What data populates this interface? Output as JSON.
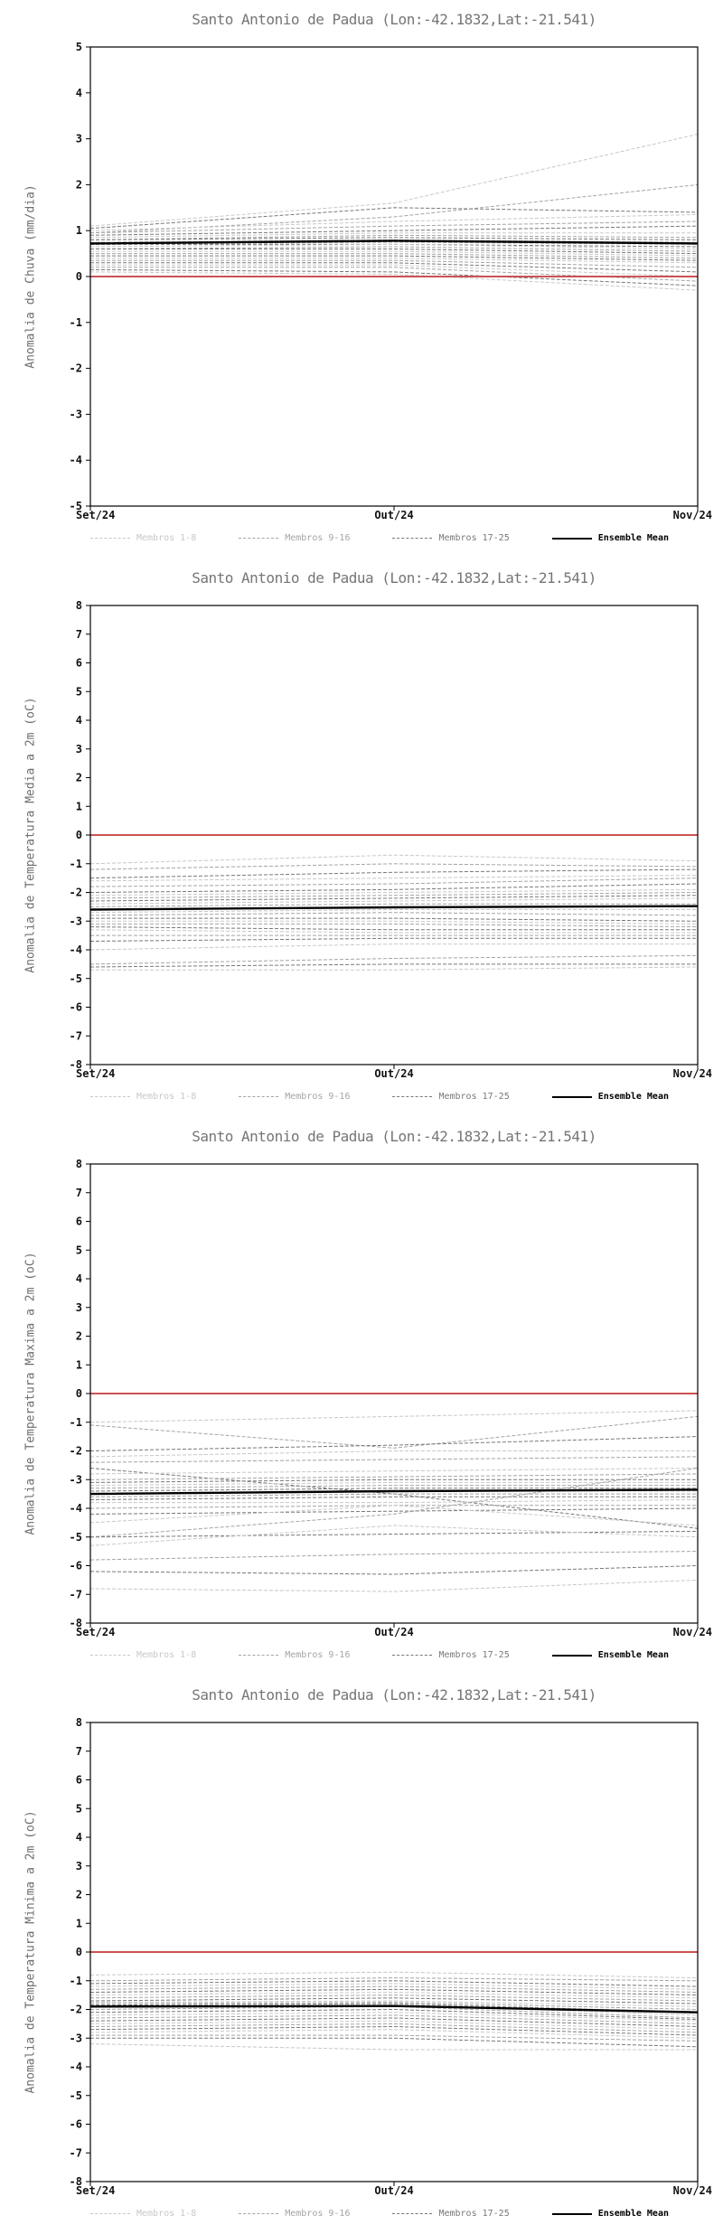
{
  "accent_colors": {
    "zero_line_red": "#cc5252",
    "ensemble_mean_black": "#000000",
    "members_light": "#c8c8c8",
    "members_mid": "#a4a4a4",
    "members_dark": "#787878"
  },
  "chart_data": [
    {
      "type": "line",
      "title": "Santo Antonio de Padua (Lon:-42.1832,Lat:-21.541)",
      "ylabel": "Anomalia de Chuva (mm/dia)",
      "x_ticks": [
        "Set/24",
        "Out/24",
        "Nov/24"
      ],
      "ylim": [
        -5,
        5
      ],
      "ytick_step": 1,
      "grid": false,
      "legend_position": "bottom",
      "zero_line": {
        "value": 0,
        "color": "#cc5252"
      },
      "legend": [
        {
          "label": "Membros 1-8",
          "color": "#c8c8c8",
          "dashed": true
        },
        {
          "label": "Membros 9-16",
          "color": "#a4a4a4",
          "dashed": true
        },
        {
          "label": "Membros 17-25",
          "color": "#787878",
          "dashed": true
        },
        {
          "label": "Ensemble Mean",
          "color": "#000000",
          "dashed": false
        }
      ],
      "members": [
        {
          "group": 0,
          "values": [
            1.1,
            1.6,
            3.1
          ]
        },
        {
          "group": 1,
          "values": [
            0.95,
            1.3,
            2.0
          ]
        },
        {
          "group": 2,
          "values": [
            1.05,
            1.5,
            1.4
          ]
        },
        {
          "group": 0,
          "values": [
            1.0,
            1.2,
            1.35
          ]
        },
        {
          "group": 1,
          "values": [
            0.95,
            1.1,
            1.2
          ]
        },
        {
          "group": 2,
          "values": [
            0.9,
            1.0,
            1.1
          ]
        },
        {
          "group": 0,
          "values": [
            0.85,
            0.95,
            0.95
          ]
        },
        {
          "group": 1,
          "values": [
            0.8,
            0.9,
            0.85
          ]
        },
        {
          "group": 2,
          "values": [
            0.8,
            0.85,
            0.8
          ]
        },
        {
          "group": 0,
          "values": [
            0.75,
            0.8,
            0.75
          ]
        },
        {
          "group": 1,
          "values": [
            0.7,
            0.75,
            0.7
          ]
        },
        {
          "group": 2,
          "values": [
            0.7,
            0.7,
            0.65
          ]
        },
        {
          "group": 0,
          "values": [
            0.65,
            0.7,
            0.6
          ]
        },
        {
          "group": 1,
          "values": [
            0.6,
            0.65,
            0.55
          ]
        },
        {
          "group": 2,
          "values": [
            0.6,
            0.6,
            0.5
          ]
        },
        {
          "group": 0,
          "values": [
            0.55,
            0.55,
            0.45
          ]
        },
        {
          "group": 1,
          "values": [
            0.5,
            0.5,
            0.4
          ]
        },
        {
          "group": 2,
          "values": [
            0.45,
            0.45,
            0.35
          ]
        },
        {
          "group": 0,
          "values": [
            0.4,
            0.4,
            0.3
          ]
        },
        {
          "group": 1,
          "values": [
            0.35,
            0.35,
            0.2
          ]
        },
        {
          "group": 2,
          "values": [
            0.3,
            0.3,
            0.1
          ]
        },
        {
          "group": 0,
          "values": [
            0.25,
            0.25,
            0.0
          ]
        },
        {
          "group": 1,
          "values": [
            0.2,
            0.2,
            -0.1
          ]
        },
        {
          "group": 2,
          "values": [
            0.15,
            0.1,
            -0.2
          ]
        },
        {
          "group": 0,
          "values": [
            0.1,
            0.05,
            -0.3
          ]
        }
      ],
      "ensemble_mean": [
        0.72,
        0.78,
        0.72
      ]
    },
    {
      "type": "line",
      "title": "Santo Antonio de Padua (Lon:-42.1832,Lat:-21.541)",
      "ylabel": "Anomalia de Temperatura Media a 2m (oC)",
      "x_ticks": [
        "Set/24",
        "Out/24",
        "Nov/24"
      ],
      "ylim": [
        -8,
        8
      ],
      "ytick_step": 1,
      "grid": false,
      "legend_position": "bottom",
      "zero_line": {
        "value": 0,
        "color": "#cc5252"
      },
      "legend": [
        {
          "label": "Membros 1-8",
          "color": "#c8c8c8",
          "dashed": true
        },
        {
          "label": "Membros 9-16",
          "color": "#a4a4a4",
          "dashed": true
        },
        {
          "label": "Membros 17-25",
          "color": "#787878",
          "dashed": true
        },
        {
          "label": "Ensemble Mean",
          "color": "#000000",
          "dashed": false
        }
      ],
      "members": [
        {
          "group": 0,
          "values": [
            -1.0,
            -0.7,
            -0.9
          ]
        },
        {
          "group": 1,
          "values": [
            -1.2,
            -1.0,
            -1.1
          ]
        },
        {
          "group": 2,
          "values": [
            -1.5,
            -1.3,
            -1.2
          ]
        },
        {
          "group": 0,
          "values": [
            -1.6,
            -1.5,
            -1.4
          ]
        },
        {
          "group": 1,
          "values": [
            -1.8,
            -1.7,
            -1.5
          ]
        },
        {
          "group": 2,
          "values": [
            -2.0,
            -1.9,
            -1.7
          ]
        },
        {
          "group": 0,
          "values": [
            -2.1,
            -2.0,
            -1.9
          ]
        },
        {
          "group": 1,
          "values": [
            -2.2,
            -2.1,
            -2.0
          ]
        },
        {
          "group": 2,
          "values": [
            -2.3,
            -2.2,
            -2.1
          ]
        },
        {
          "group": 0,
          "values": [
            -2.4,
            -2.3,
            -2.2
          ]
        },
        {
          "group": 1,
          "values": [
            -2.5,
            -2.4,
            -2.4
          ]
        },
        {
          "group": 2,
          "values": [
            -2.6,
            -2.5,
            -2.5
          ]
        },
        {
          "group": 0,
          "values": [
            -2.7,
            -2.6,
            -2.6
          ]
        },
        {
          "group": 1,
          "values": [
            -2.8,
            -2.7,
            -2.8
          ]
        },
        {
          "group": 2,
          "values": [
            -2.9,
            -2.9,
            -3.0
          ]
        },
        {
          "group": 0,
          "values": [
            -3.0,
            -3.0,
            -3.1
          ]
        },
        {
          "group": 1,
          "values": [
            -3.1,
            -3.1,
            -3.2
          ]
        },
        {
          "group": 2,
          "values": [
            -3.2,
            -3.3,
            -3.3
          ]
        },
        {
          "group": 0,
          "values": [
            -3.3,
            -3.4,
            -3.4
          ]
        },
        {
          "group": 1,
          "values": [
            -3.5,
            -3.5,
            -3.5
          ]
        },
        {
          "group": 2,
          "values": [
            -3.7,
            -3.6,
            -3.6
          ]
        },
        {
          "group": 0,
          "values": [
            -4.0,
            -3.8,
            -3.8
          ]
        },
        {
          "group": 1,
          "values": [
            -4.5,
            -4.3,
            -4.2
          ]
        },
        {
          "group": 2,
          "values": [
            -4.6,
            -4.5,
            -4.5
          ]
        },
        {
          "group": 0,
          "values": [
            -4.7,
            -4.7,
            -4.6
          ]
        }
      ],
      "ensemble_mean": [
        -2.6,
        -2.52,
        -2.48
      ]
    },
    {
      "type": "line",
      "title": "Santo Antonio de Padua (Lon:-42.1832,Lat:-21.541)",
      "ylabel": "Anomalia de Temperatura Maxima a 2m (oC)",
      "x_ticks": [
        "Set/24",
        "Out/24",
        "Nov/24"
      ],
      "ylim": [
        -8,
        8
      ],
      "ytick_step": 1,
      "grid": false,
      "legend_position": "bottom",
      "zero_line": {
        "value": 0,
        "color": "#cc5252"
      },
      "legend": [
        {
          "label": "Membros 1-8",
          "color": "#c8c8c8",
          "dashed": true
        },
        {
          "label": "Membros 9-16",
          "color": "#a4a4a4",
          "dashed": true
        },
        {
          "label": "Membros 17-25",
          "color": "#787878",
          "dashed": true
        },
        {
          "label": "Ensemble Mean",
          "color": "#000000",
          "dashed": false
        }
      ],
      "members": [
        {
          "group": 0,
          "values": [
            -1.0,
            -0.8,
            -0.6
          ]
        },
        {
          "group": 1,
          "values": [
            -1.1,
            -1.9,
            -0.8
          ]
        },
        {
          "group": 2,
          "values": [
            -2.0,
            -1.8,
            -1.5
          ]
        },
        {
          "group": 0,
          "values": [
            -2.2,
            -2.0,
            -2.0
          ]
        },
        {
          "group": 1,
          "values": [
            -2.4,
            -2.3,
            -2.2
          ]
        },
        {
          "group": 2,
          "values": [
            -2.6,
            -3.5,
            -4.7
          ]
        },
        {
          "group": 0,
          "values": [
            -2.8,
            -2.7,
            -2.6
          ]
        },
        {
          "group": 1,
          "values": [
            -3.0,
            -2.9,
            -2.8
          ]
        },
        {
          "group": 2,
          "values": [
            -3.1,
            -3.0,
            -3.0
          ]
        },
        {
          "group": 0,
          "values": [
            -3.2,
            -3.1,
            -3.1
          ]
        },
        {
          "group": 1,
          "values": [
            -3.3,
            -3.2,
            -3.2
          ]
        },
        {
          "group": 2,
          "values": [
            -3.4,
            -3.3,
            -3.3
          ]
        },
        {
          "group": 0,
          "values": [
            -3.5,
            -3.4,
            -3.4
          ]
        },
        {
          "group": 1,
          "values": [
            -3.6,
            -3.5,
            -3.5
          ]
        },
        {
          "group": 2,
          "values": [
            -3.7,
            -3.6,
            -3.6
          ]
        },
        {
          "group": 0,
          "values": [
            -3.8,
            -3.8,
            -3.7
          ]
        },
        {
          "group": 1,
          "values": [
            -4.0,
            -3.9,
            -3.9
          ]
        },
        {
          "group": 2,
          "values": [
            -4.2,
            -4.1,
            -4.0
          ]
        },
        {
          "group": 0,
          "values": [
            -4.5,
            -3.9,
            -4.6
          ]
        },
        {
          "group": 1,
          "values": [
            -5.0,
            -4.2,
            -2.6
          ]
        },
        {
          "group": 2,
          "values": [
            -5.0,
            -4.9,
            -4.8
          ]
        },
        {
          "group": 0,
          "values": [
            -5.3,
            -4.6,
            -5.0
          ]
        },
        {
          "group": 1,
          "values": [
            -5.8,
            -5.6,
            -5.5
          ]
        },
        {
          "group": 2,
          "values": [
            -6.2,
            -6.3,
            -6.0
          ]
        },
        {
          "group": 0,
          "values": [
            -6.8,
            -6.9,
            -6.5
          ]
        }
      ],
      "ensemble_mean": [
        -3.5,
        -3.4,
        -3.35
      ]
    },
    {
      "type": "line",
      "title": "Santo Antonio de Padua (Lon:-42.1832,Lat:-21.541)",
      "ylabel": "Anomalia de Temperatura Minima a 2m (oC)",
      "x_ticks": [
        "Set/24",
        "Out/24",
        "Nov/24"
      ],
      "ylim": [
        -8,
        8
      ],
      "ytick_step": 1,
      "grid": false,
      "legend_position": "bottom",
      "zero_line": {
        "value": 0,
        "color": "#cc5252"
      },
      "legend": [
        {
          "label": "Membros 1-8",
          "color": "#c8c8c8",
          "dashed": true
        },
        {
          "label": "Membros 9-16",
          "color": "#a4a4a4",
          "dashed": true
        },
        {
          "label": "Membros 17-25",
          "color": "#787878",
          "dashed": true
        },
        {
          "label": "Ensemble Mean",
          "color": "#000000",
          "dashed": false
        }
      ],
      "members": [
        {
          "group": 0,
          "values": [
            -0.8,
            -0.7,
            -0.9
          ]
        },
        {
          "group": 1,
          "values": [
            -1.0,
            -0.9,
            -1.0
          ]
        },
        {
          "group": 2,
          "values": [
            -1.1,
            -1.0,
            -1.2
          ]
        },
        {
          "group": 0,
          "values": [
            -1.2,
            -1.1,
            -1.3
          ]
        },
        {
          "group": 1,
          "values": [
            -1.3,
            -1.2,
            -1.4
          ]
        },
        {
          "group": 2,
          "values": [
            -1.4,
            -1.3,
            -1.5
          ]
        },
        {
          "group": 0,
          "values": [
            -1.5,
            -1.4,
            -1.6
          ]
        },
        {
          "group": 1,
          "values": [
            -1.6,
            -1.5,
            -1.7
          ]
        },
        {
          "group": 2,
          "values": [
            -1.7,
            -1.6,
            -1.8
          ]
        },
        {
          "group": 0,
          "values": [
            -1.75,
            -1.7,
            -1.9
          ]
        },
        {
          "group": 1,
          "values": [
            -1.8,
            -1.75,
            -2.0
          ]
        },
        {
          "group": 2,
          "values": [
            -1.85,
            -1.8,
            -2.1
          ]
        },
        {
          "group": 0,
          "values": [
            -1.9,
            -1.85,
            -2.2
          ]
        },
        {
          "group": 1,
          "values": [
            -2.0,
            -1.9,
            -2.3
          ]
        },
        {
          "group": 2,
          "values": [
            -2.1,
            -2.0,
            -2.35
          ]
        },
        {
          "group": 0,
          "values": [
            -2.2,
            -2.1,
            -2.4
          ]
        },
        {
          "group": 1,
          "values": [
            -2.3,
            -2.2,
            -2.5
          ]
        },
        {
          "group": 2,
          "values": [
            -2.4,
            -2.3,
            -2.6
          ]
        },
        {
          "group": 0,
          "values": [
            -2.5,
            -2.4,
            -2.7
          ]
        },
        {
          "group": 1,
          "values": [
            -2.6,
            -2.5,
            -2.8
          ]
        },
        {
          "group": 2,
          "values": [
            -2.7,
            -2.6,
            -2.9
          ]
        },
        {
          "group": 0,
          "values": [
            -2.8,
            -2.7,
            -3.0
          ]
        },
        {
          "group": 1,
          "values": [
            -2.9,
            -2.9,
            -3.1
          ]
        },
        {
          "group": 2,
          "values": [
            -3.0,
            -3.0,
            -3.3
          ]
        },
        {
          "group": 0,
          "values": [
            -3.2,
            -3.4,
            -3.4
          ]
        }
      ],
      "ensemble_mean": [
        -1.9,
        -1.88,
        -2.1
      ]
    }
  ]
}
